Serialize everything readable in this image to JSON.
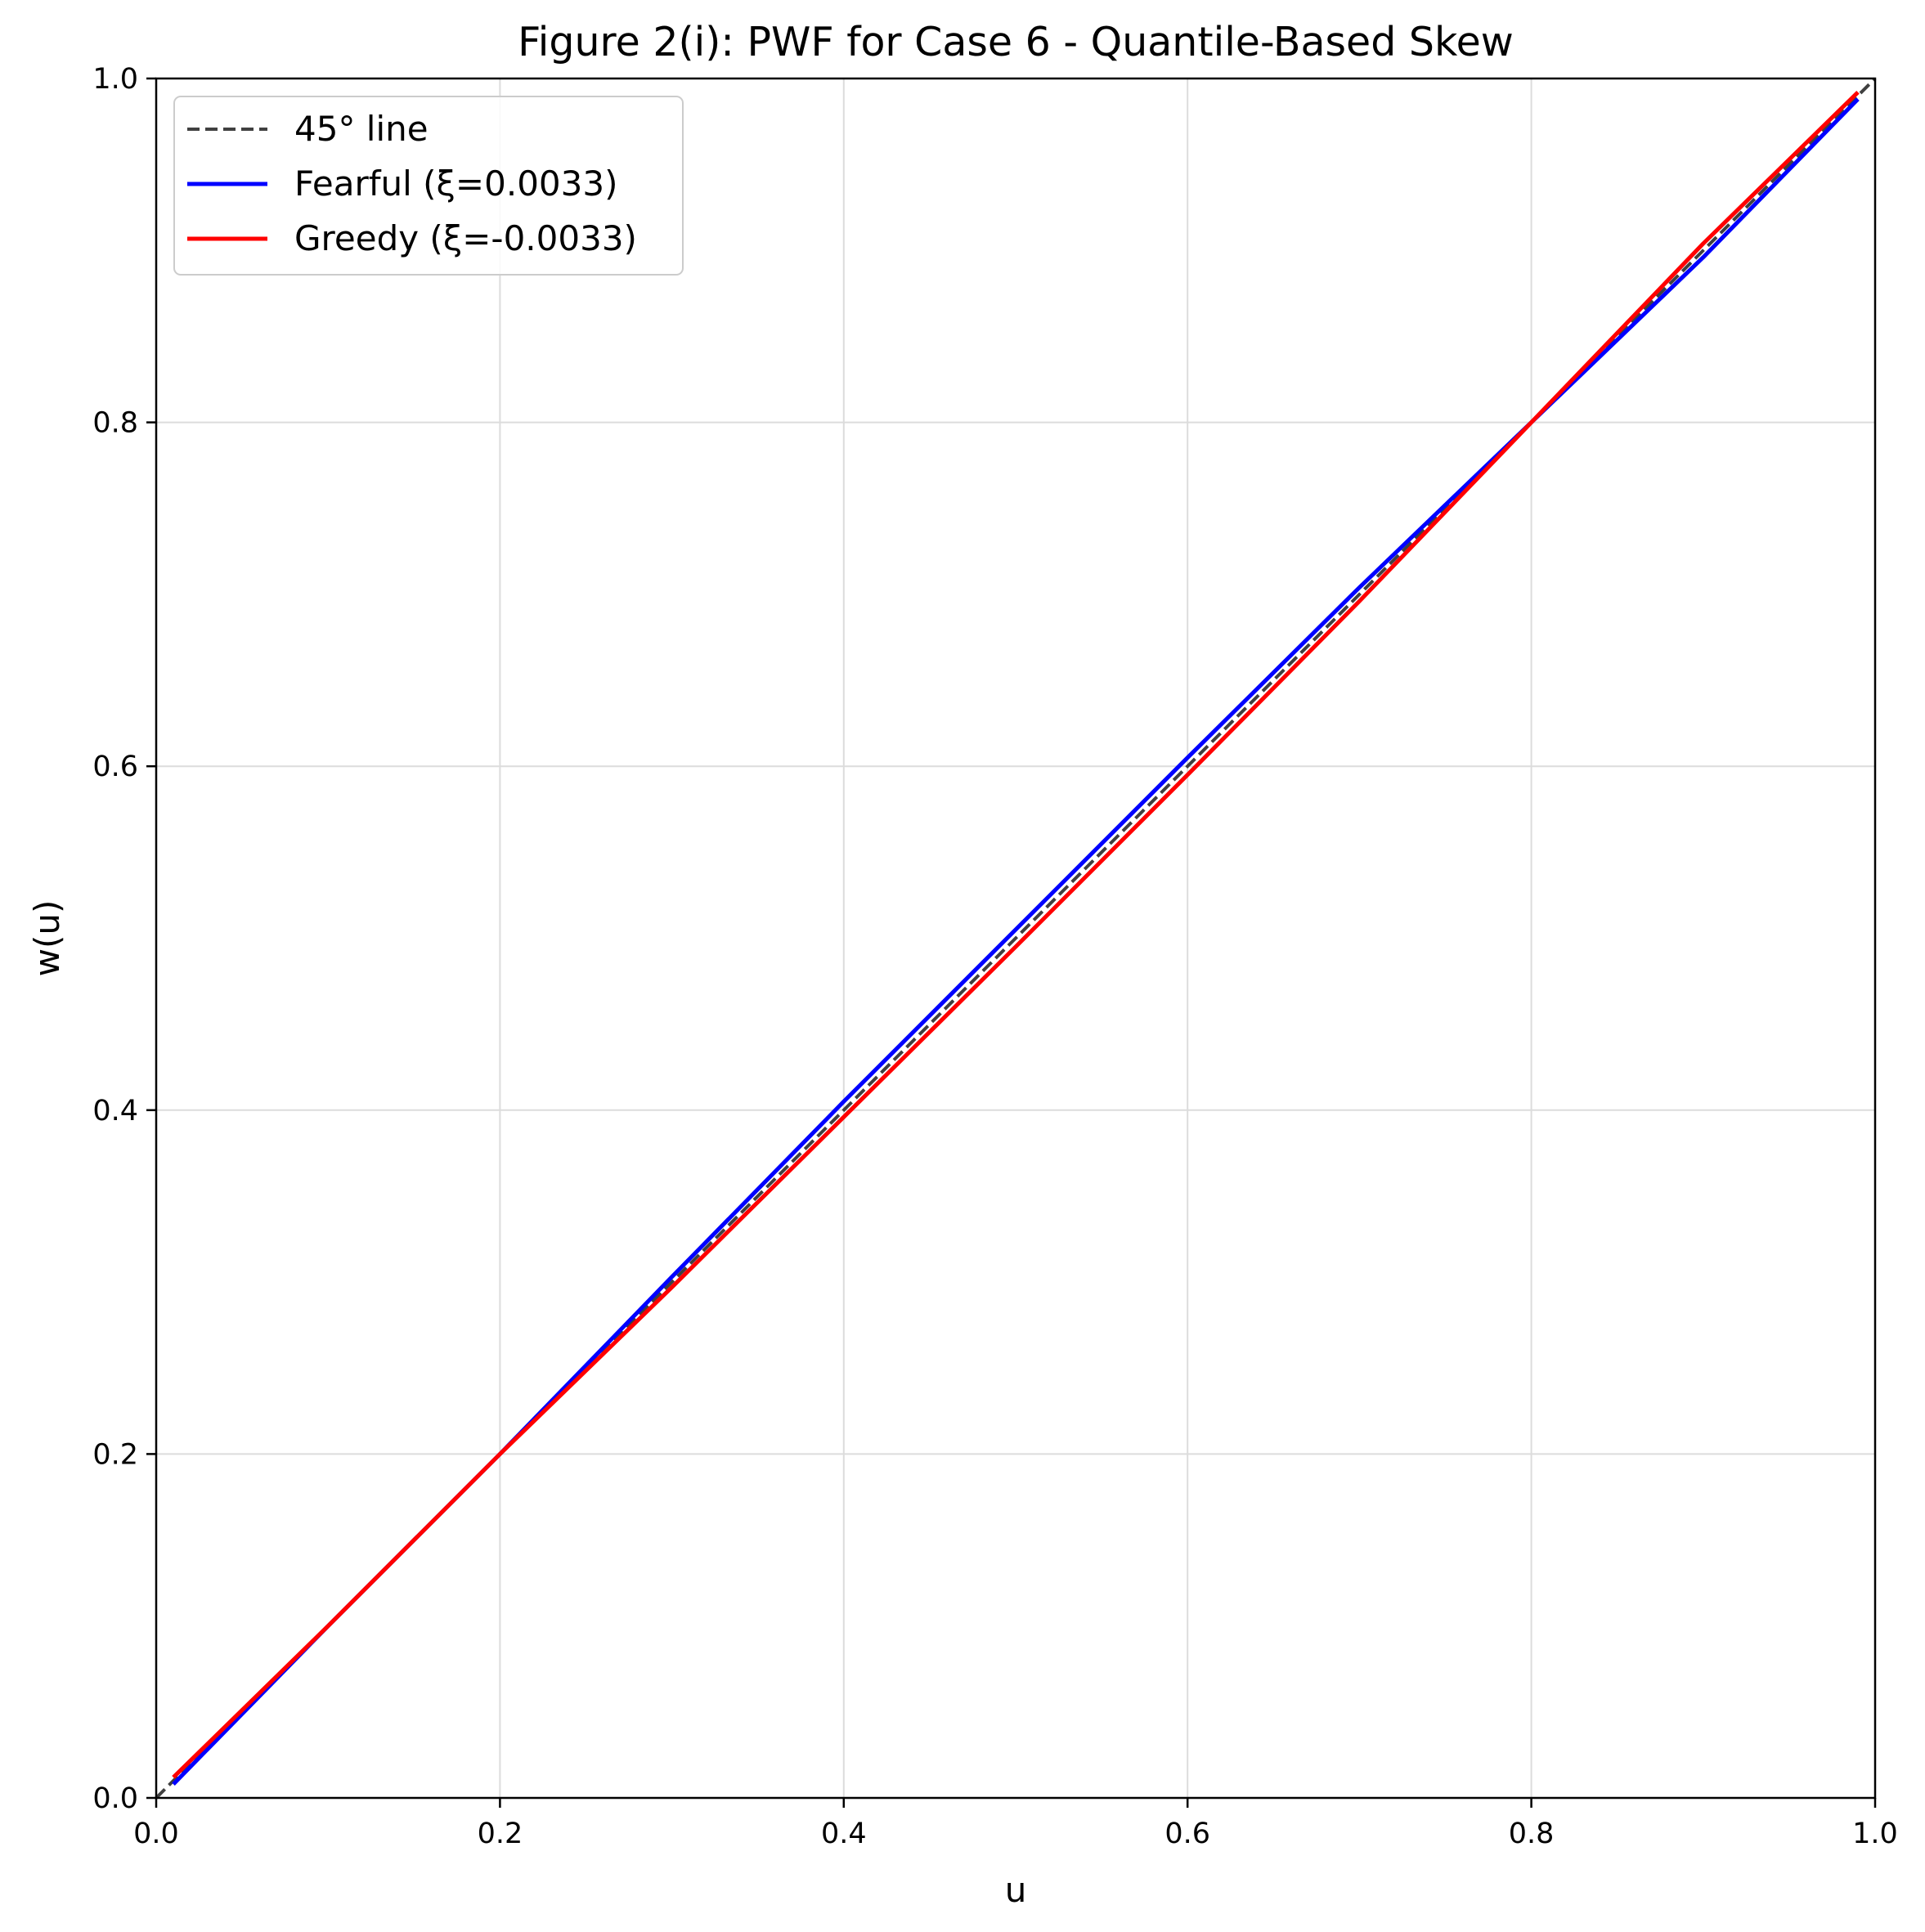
{
  "chart_data": {
    "type": "line",
    "title": "Figure 2(i): PWF for Case 6 - Quantile-Based Skew",
    "xlabel": "u",
    "ylabel": "w(u)",
    "xlim": [
      0.0,
      1.0
    ],
    "ylim": [
      0.0,
      1.0
    ],
    "xticks": [
      "0.0",
      "0.2",
      "0.4",
      "0.6",
      "0.8",
      "1.0"
    ],
    "yticks": [
      "0.0",
      "0.2",
      "0.4",
      "0.6",
      "0.8",
      "1.0"
    ],
    "grid": true,
    "legend_position": "upper-left",
    "series": [
      {
        "name": "45° line",
        "color": "#404040",
        "style": "dashed",
        "x": [
          0.0,
          1.0
        ],
        "y": [
          0.0,
          1.0
        ]
      },
      {
        "name": "Fearful (ξ=0.0033)",
        "color": "#0000ff",
        "style": "solid",
        "x": [
          0.01,
          0.1,
          0.2,
          0.3,
          0.4,
          0.5,
          0.6,
          0.7,
          0.8,
          0.9,
          0.99
        ],
        "y": [
          0.008,
          0.1,
          0.2,
          0.303,
          0.405,
          0.505,
          0.605,
          0.704,
          0.8,
          0.896,
          0.988
        ]
      },
      {
        "name": "Greedy (ξ=-0.0033)",
        "color": "#ff0000",
        "style": "solid",
        "x": [
          0.01,
          0.1,
          0.2,
          0.3,
          0.4,
          0.5,
          0.6,
          0.7,
          0.8,
          0.9,
          0.99
        ],
        "y": [
          0.012,
          0.1,
          0.2,
          0.297,
          0.396,
          0.495,
          0.595,
          0.696,
          0.8,
          0.904,
          0.992
        ]
      }
    ]
  }
}
